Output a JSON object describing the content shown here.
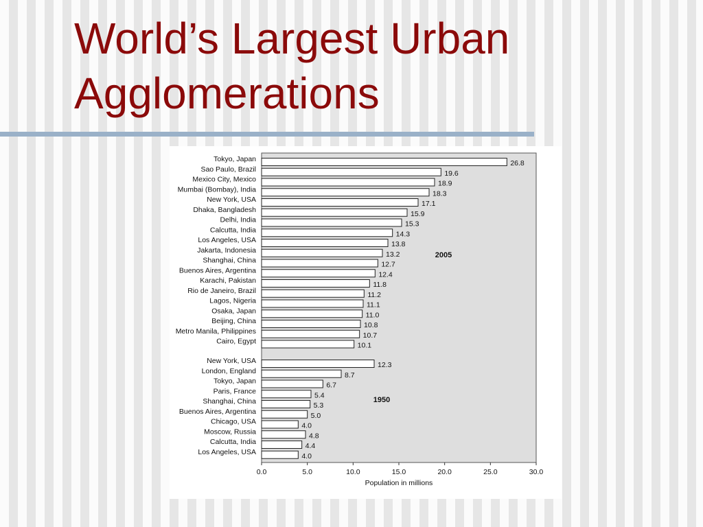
{
  "slide": {
    "title_line1": "World’s Largest Urban",
    "title_line2": "Agglomerations"
  },
  "colors": {
    "title": "#8b0a0a",
    "rule": "#9ab1c8",
    "plot_background": "#dedede",
    "bar_fill": "#ffffff",
    "bar_stroke": "#222222"
  },
  "chart_data": {
    "type": "bar",
    "orientation": "horizontal",
    "xlabel": "Population in millions",
    "xlim": [
      0,
      30
    ],
    "xticks": [
      "0.0",
      "5.0",
      "10.0",
      "15.0",
      "20.0",
      "25.0",
      "30.0"
    ],
    "grid": false,
    "groups": [
      {
        "name": "2005",
        "categories": [
          "Tokyo, Japan",
          "Sao Paulo, Brazil",
          "Mexico City, Mexico",
          "Mumbai (Bombay), India",
          "New York, USA",
          "Dhaka, Bangladesh",
          "Delhi, India",
          "Calcutta, India",
          "Los Angeles, USA",
          "Jakarta, Indonesia",
          "Shanghai, China",
          "Buenos Aires, Argentina",
          "Karachi, Pakistan",
          "Rio de Janeiro, Brazil",
          "Lagos, Nigeria",
          "Osaka, Japan",
          "Beijing, China",
          "Metro Manila, Philippines",
          "Cairo, Egypt"
        ],
        "values": [
          26.8,
          19.6,
          18.9,
          18.3,
          17.1,
          15.9,
          15.3,
          14.3,
          13.8,
          13.2,
          12.7,
          12.4,
          11.8,
          11.2,
          11.1,
          11.0,
          10.8,
          10.7,
          10.1
        ],
        "value_labels": [
          "26.8",
          "19.6",
          "18.9",
          "18.3",
          "17.1",
          "15.9",
          "15.3",
          "14.3",
          "13.8",
          "13.2",
          "12.7",
          "12.4",
          "11.8",
          "11.2",
          "11.1",
          "11.0",
          "10.8",
          "10.7",
          "10.1"
        ]
      },
      {
        "name": "1950",
        "categories": [
          "New York, USA",
          "London, England",
          "Tokyo, Japan",
          "Paris, France",
          "Shanghai, China",
          "Buenos Aires, Argentina",
          "Chicago, USA",
          "Moscow, Russia",
          "Calcutta, India",
          "Los Angeles, USA"
        ],
        "values": [
          12.3,
          8.7,
          6.7,
          5.4,
          5.3,
          5.0,
          4.0,
          4.8,
          4.4,
          4.0
        ],
        "value_labels": [
          "12.3",
          "8.7",
          "6.7",
          "5.4",
          "5.3",
          "5.0",
          "4.0",
          "4.8",
          "4.4",
          "4.0"
        ]
      }
    ]
  }
}
